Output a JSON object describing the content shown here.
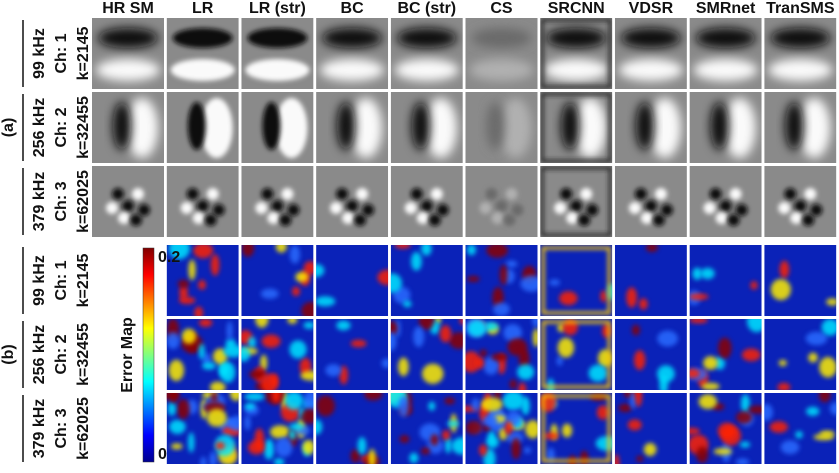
{
  "columns": [
    "HR SM",
    "LR",
    "LR (str)",
    "BC",
    "BC (str)",
    "CS",
    "SRCNN",
    "VDSR",
    "SMRnet",
    "TranSMS"
  ],
  "sections": [
    {
      "label": "(a)",
      "rows": [
        {
          "freq": "99 kHz",
          "channel": "Ch: 1",
          "k": "k=2145"
        },
        {
          "freq": "256 kHz",
          "channel": "Ch: 2",
          "k": "k=32455"
        },
        {
          "freq": "379 kHz",
          "channel": "Ch: 3",
          "k": "k=62025"
        }
      ]
    },
    {
      "label": "(b)",
      "rows": [
        {
          "freq": "99 kHz",
          "channel": "Ch: 1",
          "k": "k=2145"
        },
        {
          "freq": "256 kHz",
          "channel": "Ch: 2",
          "k": "k=32455"
        },
        {
          "freq": "379 kHz",
          "channel": "Ch: 3",
          "k": "k=62025"
        }
      ]
    }
  ],
  "colorbar": {
    "label": "Error Map",
    "max": 0.2,
    "min": 0
  }
}
